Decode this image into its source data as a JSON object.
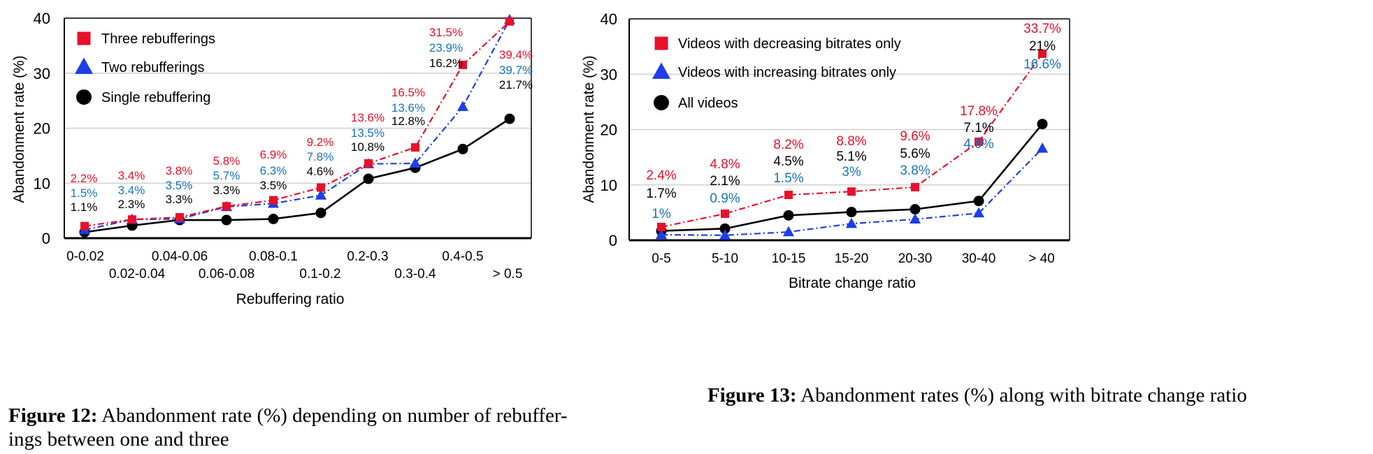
{
  "chart_data": [
    {
      "type": "line",
      "xlabel": "Rebuffering ratio",
      "ylabel": "Abandonment rate (%)",
      "ylim": [
        0,
        40
      ],
      "yticks": [
        0,
        10,
        20,
        30,
        40
      ],
      "grid": true,
      "legend": "top-left",
      "categories": [
        "0-0.02",
        "0.02-0.04",
        "0.04-0.06",
        "0.06-0.08",
        "0.08-0.1",
        "0.1-0.2",
        "0.2-0.3",
        "0.3-0.4",
        "0.4-0.5",
        "> 0.5"
      ],
      "series": [
        {
          "name": "Three rebufferings",
          "marker": "square",
          "color": "#e8102a",
          "dash": "dashdot",
          "values": [
            2.2,
            3.4,
            3.8,
            5.8,
            6.9,
            9.2,
            13.6,
            16.5,
            31.5,
            39.4
          ],
          "labels": [
            "2.2%",
            "3.4%",
            "3.8%",
            "5.8%",
            "6.9%",
            "9.2%",
            "13.6%",
            "16.5%",
            "31.5%",
            "39.4%"
          ]
        },
        {
          "name": "Two rebufferings",
          "marker": "triangle",
          "color": "#1d3ee8",
          "label_color": "#1a73b8",
          "dash": "dashdot",
          "values": [
            1.5,
            3.4,
            3.5,
            5.7,
            6.3,
            7.8,
            13.5,
            13.6,
            23.9,
            39.7
          ],
          "labels": [
            "1.5%",
            "3.4%",
            "3.5%",
            "5.7%",
            "6.3%",
            "7.8%",
            "13.5%",
            "13.6%",
            "23.9%",
            "39.7%"
          ]
        },
        {
          "name": "Single rebuffering",
          "marker": "circle",
          "color": "#000000",
          "dash": "solid",
          "values": [
            1.1,
            2.3,
            3.3,
            3.3,
            3.5,
            4.6,
            10.8,
            12.8,
            16.2,
            21.7
          ],
          "labels": [
            "1.1%",
            "2.3%",
            "3.3%",
            "3.3%",
            "3.5%",
            "4.6%",
            "10.8%",
            "12.8%",
            "16.2%",
            "21.7%"
          ]
        }
      ],
      "caption_bold": "Figure 12:",
      "caption_line1": " Abandonment rate (%) depending on number of rebuffer-",
      "caption_line2": "ings between one and three"
    },
    {
      "type": "line",
      "xlabel": "Bitrate change ratio",
      "ylabel": "Abandonment rate (%)",
      "ylim": [
        0,
        40
      ],
      "yticks": [
        0,
        10,
        20,
        30,
        40
      ],
      "grid": true,
      "legend": "top-left",
      "categories": [
        "0-5",
        "5-10",
        "10-15",
        "15-20",
        "20-30",
        "30-40",
        "> 40"
      ],
      "series": [
        {
          "name": "Videos with decreasing bitrates only",
          "marker": "square",
          "color": "#e8102a",
          "dash": "dashdot",
          "values": [
            2.4,
            4.8,
            8.2,
            8.8,
            9.6,
            17.8,
            33.7
          ],
          "labels": [
            "2.4%",
            "4.8%",
            "8.2%",
            "8.8%",
            "9.6%",
            "17.8%",
            "33.7%"
          ]
        },
        {
          "name": "Videos with increasing bitrates only",
          "marker": "triangle",
          "color": "#1d3ee8",
          "label_color": "#1a73b8",
          "dash": "dashdot",
          "values": [
            1,
            0.9,
            1.5,
            3,
            3.8,
            4.9,
            16.6
          ],
          "labels": [
            "1%",
            "0.9%",
            "1.5%",
            "3%",
            "3.8%",
            "4.9%",
            "16.6%"
          ]
        },
        {
          "name": "All videos",
          "marker": "circle",
          "color": "#000000",
          "dash": "solid",
          "values": [
            1.7,
            2.1,
            4.5,
            5.1,
            5.6,
            7.1,
            21
          ],
          "labels": [
            "1.7%",
            "2.1%",
            "4.5%",
            "5.1%",
            "5.6%",
            "7.1%",
            "21%"
          ]
        }
      ],
      "caption_bold": "Figure 13:",
      "caption_line1": " Abandonment rates (%) along with bitrate change ratio",
      "caption_line2": ""
    }
  ]
}
